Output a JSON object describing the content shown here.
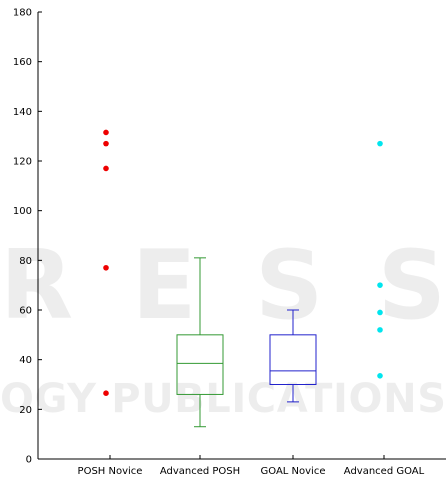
{
  "chart_data": {
    "type": "box",
    "title": "",
    "xlabel": "",
    "ylabel": "",
    "ylim": [
      0,
      180
    ],
    "yticks": [
      0,
      20,
      40,
      60,
      80,
      100,
      120,
      140,
      160,
      180
    ],
    "grid": false,
    "categories": [
      "POSH Novice",
      "Advanced POSH",
      "GOAL Novice",
      "Advanced GOAL"
    ],
    "groups": [
      {
        "category": "POSH Novice",
        "color": "#ee0000",
        "box": null,
        "points": [
          131.5,
          127,
          117,
          77,
          26.5
        ]
      },
      {
        "category": "Advanced POSH",
        "color": "#339933",
        "box": {
          "whisker_low": 13,
          "q1": 26,
          "median": 38.5,
          "q3": 50,
          "whisker_high": 81
        },
        "points": []
      },
      {
        "category": "GOAL Novice",
        "color": "#2222cc",
        "box": {
          "whisker_low": 23,
          "q1": 30,
          "median": 35.5,
          "q3": 50,
          "whisker_high": 60
        },
        "points": []
      },
      {
        "category": "Advanced GOAL",
        "color": "#00e5ee",
        "box": null,
        "points": [
          127,
          70,
          59,
          52,
          33.5
        ]
      }
    ]
  },
  "watermark": {
    "big": "RESS",
    "small": "OGY PUBLICATIONS",
    "color": "#000000",
    "opacity": 0.07
  }
}
